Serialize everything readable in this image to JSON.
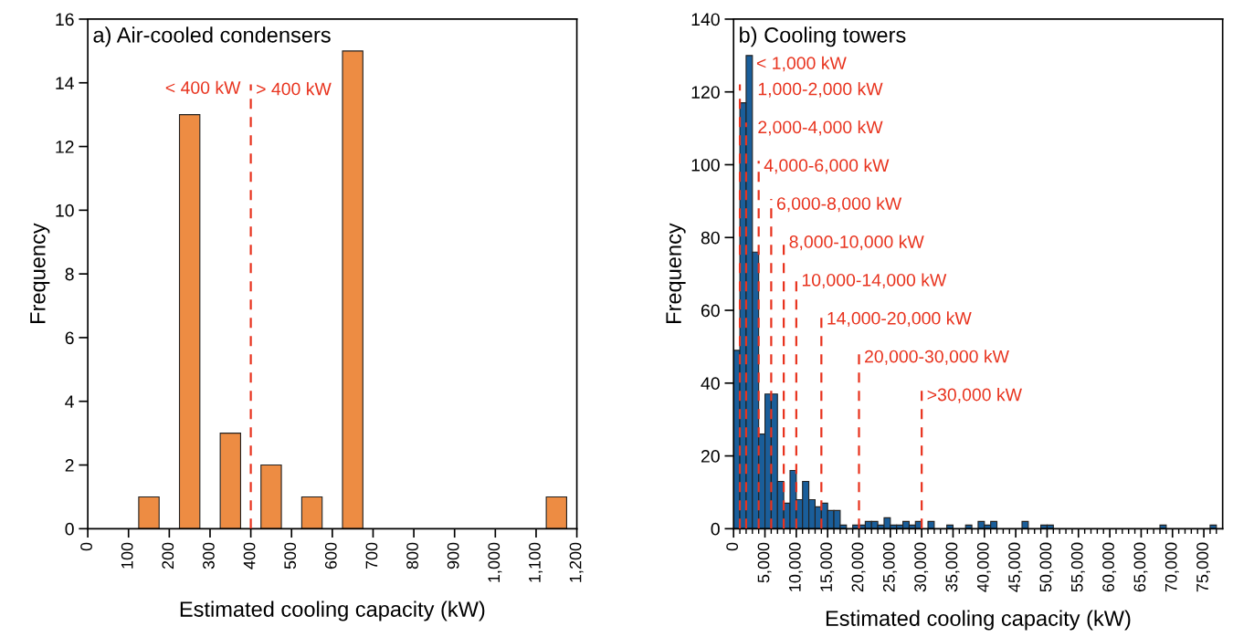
{
  "chart_data": [
    {
      "type": "histogram",
      "title": "a) Air-cooled condensers",
      "xlabel": "Estimated cooling capacity (kW)",
      "ylabel": "Frequency",
      "bins": [
        0,
        100,
        200,
        300,
        400,
        500,
        600,
        700,
        800,
        900,
        1000,
        1100,
        1200
      ],
      "values": [
        0,
        1,
        13,
        3,
        2,
        1,
        15,
        0,
        0,
        0,
        0,
        1
      ],
      "color": "#ed8c43",
      "xlim": [
        0,
        1200
      ],
      "xticks": [
        0,
        100,
        200,
        300,
        400,
        500,
        600,
        700,
        800,
        900,
        {
          "value": 1000,
          "label": "1,000"
        },
        {
          "value": 1100,
          "label": "1,100"
        },
        {
          "value": 1200,
          "label": "1,200"
        }
      ],
      "ylim": [
        0,
        16
      ],
      "yticks": [
        0,
        2,
        4,
        6,
        8,
        10,
        12,
        14,
        16
      ],
      "ref_lines": [
        {
          "axis": "x",
          "value": 400,
          "label": "> 400 kW",
          "color": "#e8331e",
          "line_style": "dashed"
        }
      ],
      "annotations": [
        {
          "text": "< 400 kW",
          "x": 400,
          "y": 13.8
        }
      ],
      "grid": false,
      "legend": false
    },
    {
      "type": "histogram",
      "title": "b) Cooling towers",
      "xlabel": "Estimated cooling capacity (kW)",
      "ylabel": "Frequency",
      "bins": [
        0,
        1000,
        2000,
        3000,
        4000,
        5000,
        6000,
        7000,
        8000,
        9000,
        10000,
        11000,
        12000,
        13000,
        14000,
        15000,
        16000,
        17000,
        18000,
        19000,
        20000,
        21000,
        22000,
        23000,
        24000,
        25000,
        26000,
        27000,
        28000,
        29000,
        30000,
        31000,
        32000,
        33000,
        34000,
        35000,
        36000,
        37000,
        38000,
        39000,
        40000,
        41000,
        42000,
        43000,
        44000,
        45000,
        46000,
        47000,
        48000,
        49000,
        50000,
        51000,
        52000,
        53000,
        54000,
        55000,
        56000,
        57000,
        58000,
        59000,
        60000,
        61000,
        62000,
        63000,
        64000,
        65000,
        66000,
        67000,
        68000,
        69000,
        70000,
        71000,
        72000,
        73000,
        74000,
        75000,
        76000,
        77000
      ],
      "values": [
        49,
        117,
        130,
        76,
        26,
        37,
        37,
        13,
        7,
        16,
        8,
        13,
        8,
        6,
        7,
        5,
        5,
        1,
        0,
        1,
        1,
        2,
        2,
        1,
        3,
        1,
        1,
        2,
        1,
        2,
        0,
        2,
        0,
        0,
        1,
        0,
        0,
        1,
        0,
        2,
        1,
        2,
        0,
        0,
        0,
        0,
        2,
        0,
        0,
        1,
        1,
        0,
        0,
        0,
        0,
        0,
        0,
        0,
        0,
        0,
        0,
        0,
        0,
        0,
        0,
        0,
        0,
        0,
        1,
        0,
        0,
        0,
        0,
        0,
        0,
        0,
        1
      ],
      "color": "#1a5e9a",
      "xlim": [
        0,
        78000
      ],
      "xticks": [
        0,
        {
          "value": 1000,
          "label": null
        },
        {
          "value": 2000,
          "label": null
        },
        {
          "value": 3000,
          "label": null
        },
        {
          "value": 4000,
          "label": null
        },
        {
          "value": 5000,
          "label": "5,000"
        },
        {
          "value": 6000,
          "label": null
        },
        {
          "value": 7000,
          "label": null
        },
        {
          "value": 8000,
          "label": null
        },
        {
          "value": 9000,
          "label": null
        },
        {
          "value": 10000,
          "label": "10,000"
        },
        {
          "value": 11000,
          "label": null
        },
        {
          "value": 12000,
          "label": null
        },
        {
          "value": 13000,
          "label": null
        },
        {
          "value": 14000,
          "label": null
        },
        {
          "value": 15000,
          "label": "15,000"
        },
        {
          "value": 16000,
          "label": null
        },
        {
          "value": 17000,
          "label": null
        },
        {
          "value": 18000,
          "label": null
        },
        {
          "value": 19000,
          "label": null
        },
        {
          "value": 20000,
          "label": "20,000"
        },
        {
          "value": 21000,
          "label": null
        },
        {
          "value": 22000,
          "label": null
        },
        {
          "value": 23000,
          "label": null
        },
        {
          "value": 24000,
          "label": null
        },
        {
          "value": 25000,
          "label": "25,000"
        },
        {
          "value": 26000,
          "label": null
        },
        {
          "value": 27000,
          "label": null
        },
        {
          "value": 28000,
          "label": null
        },
        {
          "value": 29000,
          "label": null
        },
        {
          "value": 30000,
          "label": "30,000"
        },
        {
          "value": 31000,
          "label": null
        },
        {
          "value": 32000,
          "label": null
        },
        {
          "value": 33000,
          "label": null
        },
        {
          "value": 34000,
          "label": null
        },
        {
          "value": 35000,
          "label": "35,000"
        },
        {
          "value": 36000,
          "label": null
        },
        {
          "value": 37000,
          "label": null
        },
        {
          "value": 38000,
          "label": null
        },
        {
          "value": 39000,
          "label": null
        },
        {
          "value": 40000,
          "label": "40,000"
        },
        {
          "value": 41000,
          "label": null
        },
        {
          "value": 42000,
          "label": null
        },
        {
          "value": 43000,
          "label": null
        },
        {
          "value": 44000,
          "label": null
        },
        {
          "value": 45000,
          "label": "45,000"
        },
        {
          "value": 46000,
          "label": null
        },
        {
          "value": 47000,
          "label": null
        },
        {
          "value": 48000,
          "label": null
        },
        {
          "value": 49000,
          "label": null
        },
        {
          "value": 50000,
          "label": "50,000"
        },
        {
          "value": 51000,
          "label": null
        },
        {
          "value": 52000,
          "label": null
        },
        {
          "value": 53000,
          "label": null
        },
        {
          "value": 54000,
          "label": null
        },
        {
          "value": 55000,
          "label": "55,000"
        },
        {
          "value": 56000,
          "label": null
        },
        {
          "value": 57000,
          "label": null
        },
        {
          "value": 58000,
          "label": null
        },
        {
          "value": 59000,
          "label": null
        },
        {
          "value": 60000,
          "label": "60,000"
        },
        {
          "value": 61000,
          "label": null
        },
        {
          "value": 62000,
          "label": null
        },
        {
          "value": 63000,
          "label": null
        },
        {
          "value": 64000,
          "label": null
        },
        {
          "value": 65000,
          "label": "65,000"
        },
        {
          "value": 66000,
          "label": null
        },
        {
          "value": 67000,
          "label": null
        },
        {
          "value": 68000,
          "label": null
        },
        {
          "value": 69000,
          "label": null
        },
        {
          "value": 70000,
          "label": "70,000"
        },
        {
          "value": 71000,
          "label": null
        },
        {
          "value": 72000,
          "label": null
        },
        {
          "value": 73000,
          "label": null
        },
        {
          "value": 74000,
          "label": null
        },
        {
          "value": 75000,
          "label": "75,000"
        },
        {
          "value": 76000,
          "label": null
        },
        {
          "value": 77000,
          "label": null
        }
      ],
      "ylim": [
        0,
        140
      ],
      "yticks": [
        0,
        20,
        40,
        60,
        80,
        100,
        120,
        140
      ],
      "ref_lines": [
        {
          "axis": "x",
          "value": 1000,
          "label": "1,000-2,000 kW",
          "color": "#e8331e",
          "line_style": "dashed"
        },
        {
          "axis": "x",
          "value": 2000,
          "label": "2,000-4,000 kW",
          "color": "#e8331e",
          "line_style": "dashed"
        },
        {
          "axis": "x",
          "value": 4000,
          "label": "4,000-6,000 kW",
          "color": "#e8331e",
          "line_style": "dashed"
        },
        {
          "axis": "x",
          "value": 6000,
          "label": "6,000-8,000 kW",
          "color": "#e8331e",
          "line_style": "dashed"
        },
        {
          "axis": "x",
          "value": 8000,
          "label": "8,000-10,000 kW",
          "color": "#e8331e",
          "line_style": "dashed"
        },
        {
          "axis": "x",
          "value": 10000,
          "label": "10,000-14,000 kW",
          "color": "#e8331e",
          "line_style": "dashed"
        },
        {
          "axis": "x",
          "value": 14000,
          "label": "14,000-20,000 kW",
          "color": "#e8331e",
          "line_style": "dashed"
        },
        {
          "axis": "x",
          "value": 20000,
          "label": "20,000-30,000 kW",
          "color": "#e8331e",
          "line_style": "dashed"
        },
        {
          "axis": "x",
          "value": 30000,
          "label": ">30,000 kW",
          "color": "#e8331e",
          "line_style": "dashed"
        }
      ],
      "annotations": [
        {
          "text": "< 1,000 kW",
          "x": 3000,
          "y": 127.5
        }
      ],
      "grid": false,
      "legend": false
    }
  ]
}
